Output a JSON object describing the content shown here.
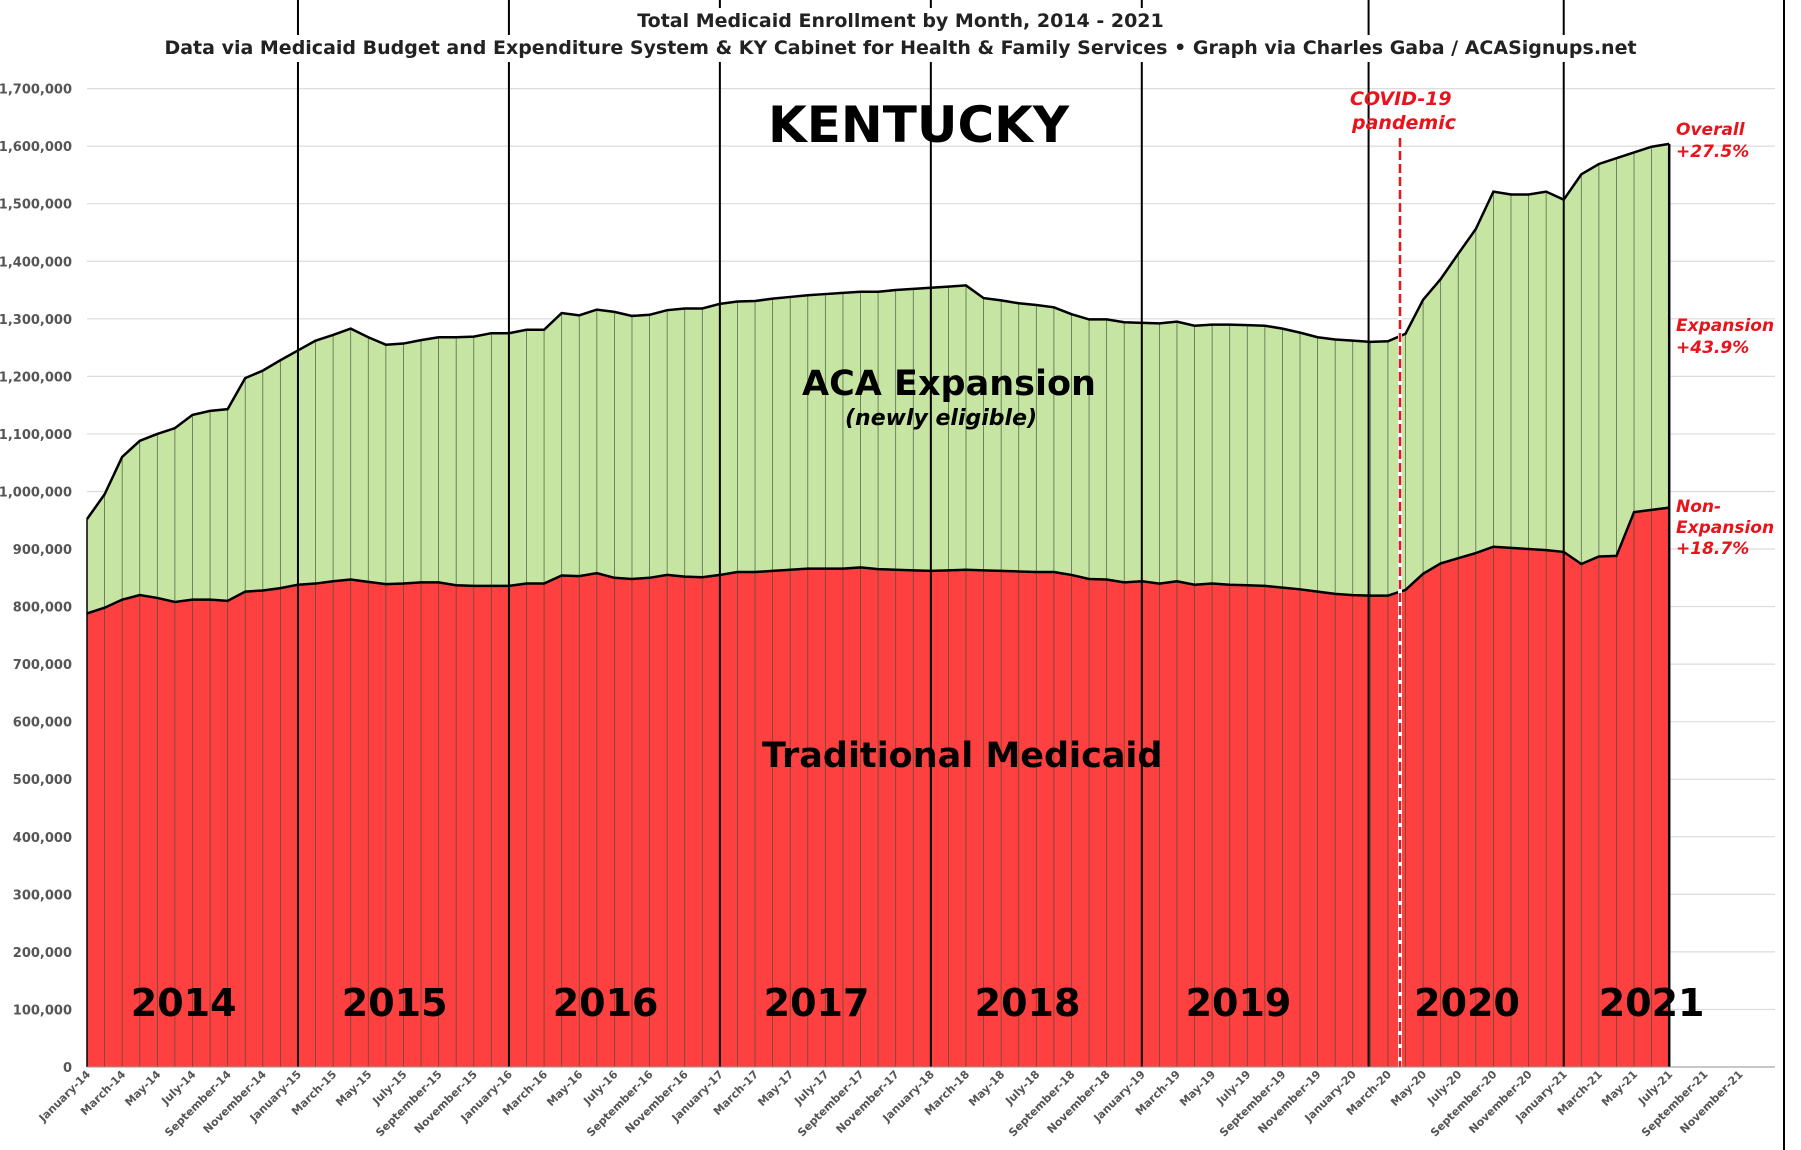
{
  "chart_data": {
    "type": "area",
    "stacked": true,
    "title": "Total Medicaid Enrollment by Month, 2014 - 2021",
    "subtitle": "Data via Medicaid Budget and Expenditure System & KY Cabinet for Health & Family Services  •  Graph via Charles Gaba / ACASignups.net",
    "state_label": "KENTUCKY",
    "xlabel": "",
    "ylabel": "",
    "ylim": [
      0,
      1700000
    ],
    "y_ticks": [
      "0",
      "100,000",
      "200,000",
      "300,000",
      "400,000",
      "500,000",
      "600,000",
      "700,000",
      "800,000",
      "900,000",
      "1,000,000",
      "1,100,000",
      "1,200,000",
      "1,300,000",
      "1,400,000",
      "1,500,000",
      "1,600,000",
      "1,700,000"
    ],
    "grid": true,
    "x_start": "January-14",
    "x_tick_labels": [
      "January-14",
      "March-14",
      "May-14",
      "July-14",
      "September-14",
      "November-14",
      "January-15",
      "March-15",
      "May-15",
      "July-15",
      "September-15",
      "November-15",
      "January-16",
      "March-16",
      "May-16",
      "July-16",
      "September-16",
      "November-16",
      "January-17",
      "March-17",
      "May-17",
      "July-17",
      "September-17",
      "November-17",
      "January-18",
      "March-18",
      "May-18",
      "July-18",
      "September-18",
      "November-18",
      "January-19",
      "March-19",
      "May-19",
      "July-19",
      "September-19",
      "November-19",
      "January-20",
      "March-20",
      "May-20",
      "July-20",
      "September-20",
      "November-20",
      "January-21",
      "March-21",
      "May-21",
      "July-21",
      "September-21",
      "November-21"
    ],
    "year_labels": [
      "2014",
      "2015",
      "2016",
      "2017",
      "2018",
      "2019",
      "2020",
      "2021"
    ],
    "series": [
      {
        "name": "Traditional Medicaid",
        "color": "#ff4040",
        "values": [
          788000,
          798000,
          812000,
          820000,
          815000,
          808000,
          812000,
          812000,
          810000,
          826000,
          828000,
          832000,
          838000,
          840000,
          844000,
          847000,
          843000,
          839000,
          840000,
          842000,
          842000,
          837000,
          836000,
          836000,
          836000,
          840000,
          840000,
          854000,
          853000,
          858000,
          850000,
          848000,
          850000,
          855000,
          852000,
          851000,
          855000,
          860000,
          860000,
          862000,
          864000,
          866000,
          866000,
          866000,
          868000,
          865000,
          864000,
          863000,
          862000,
          863000,
          864000,
          863000,
          862000,
          861000,
          860000,
          860000,
          855000,
          848000,
          847000,
          842000,
          844000,
          840000,
          844000,
          838000,
          840000,
          838000,
          837000,
          836000,
          833000,
          830000,
          826000,
          822000,
          820000,
          819000,
          819000,
          829000,
          857000,
          875000,
          884000,
          893000,
          904000,
          902000,
          900000,
          898000,
          895000,
          874000,
          887000,
          888000,
          964000,
          968000,
          972000
        ]
      },
      {
        "name": "ACA Expansion",
        "sublabel": "(newly eligible)",
        "color": "#c6e5a3",
        "totals": [
          952000,
          995000,
          1060000,
          1088000,
          1100000,
          1110000,
          1133000,
          1140000,
          1143000,
          1197000,
          1210000,
          1228000,
          1245000,
          1262000,
          1272000,
          1283000,
          1268000,
          1255000,
          1257000,
          1263000,
          1268000,
          1268000,
          1269000,
          1275000,
          1275000,
          1281000,
          1281000,
          1310000,
          1306000,
          1316000,
          1312000,
          1305000,
          1307000,
          1315000,
          1318000,
          1318000,
          1326000,
          1330000,
          1331000,
          1335000,
          1338000,
          1341000,
          1343000,
          1345000,
          1347000,
          1347000,
          1350000,
          1352000,
          1354000,
          1356000,
          1358000,
          1336000,
          1332000,
          1327000,
          1324000,
          1320000,
          1308000,
          1299000,
          1299000,
          1294000,
          1293000,
          1292000,
          1295000,
          1288000,
          1290000,
          1290000,
          1289000,
          1288000,
          1283000,
          1276000,
          1268000,
          1264000,
          1262000,
          1260000,
          1261000,
          1274000,
          1333000,
          1369000,
          1413000,
          1456000,
          1521000,
          1516000,
          1516000,
          1521000,
          1507000,
          1551000,
          1569000,
          1579000,
          1589000,
          1599000,
          1604000
        ]
      }
    ],
    "annotations": {
      "covid_line1": "COVID-19",
      "covid_line2": "pandemic",
      "overall_label": "Overall",
      "overall_value": "+27.5%",
      "expansion_label": "Expansion",
      "expansion_value": "+43.9%",
      "nonexp_label1": "Non-",
      "nonexp_label2": "Expansion",
      "nonexp_value": "+18.7%",
      "color": "#e8141b"
    }
  }
}
